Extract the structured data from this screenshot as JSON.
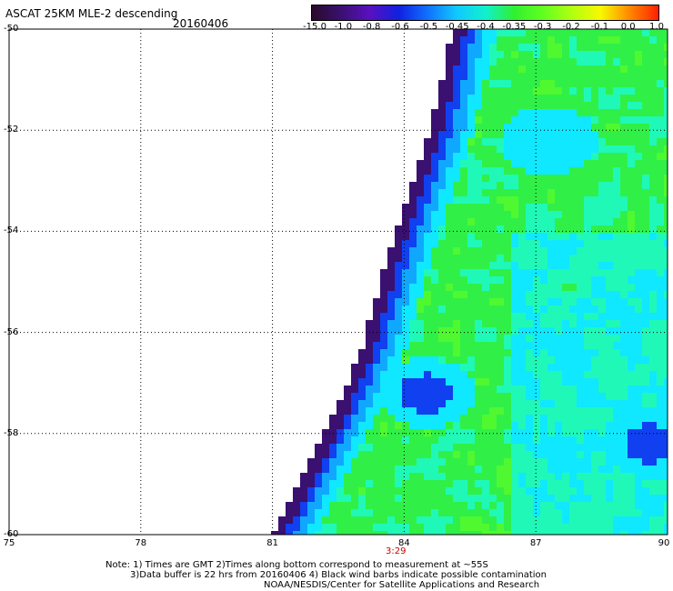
{
  "header": {
    "title": "ASCAT 25KM MLE-2 descending",
    "date": "20160406"
  },
  "colorbar": {
    "labels": [
      "-15.0",
      "-1.0",
      "-0.8",
      "-0.6",
      "-0.5",
      "-0.45",
      "-0.4",
      "-0.35",
      "-0.3",
      "-0.2",
      "-0.1",
      "0.0",
      "1.0"
    ],
    "colors": [
      "#2a0a2a",
      "#3a1070",
      "#5a10c0",
      "#1020e0",
      "#1070ff",
      "#10c8ff",
      "#10f0d0",
      "#30f030",
      "#60ff20",
      "#b0ff10",
      "#f8f800",
      "#ff8800",
      "#ff2000"
    ]
  },
  "map": {
    "lon_ticks": [
      "75",
      "78",
      "81",
      "84",
      "87",
      "90"
    ],
    "lat_ticks": [
      "-50",
      "-52",
      "-54",
      "-56",
      "-58",
      "-60"
    ],
    "lon_range": [
      75,
      90
    ],
    "lat_range": [
      -60,
      -50
    ],
    "swath_edge": [
      [
        81.0,
        -60
      ],
      [
        82.2,
        -58
      ],
      [
        83.0,
        -56.4
      ],
      [
        83.8,
        -54
      ],
      [
        84.6,
        -52
      ],
      [
        85.1,
        -50
      ]
    ],
    "low_spots": [
      {
        "lon": 84.5,
        "lat": -57.2,
        "value": "-0.6"
      },
      {
        "lon": 89.6,
        "lat": -58.2,
        "value": "-0.6"
      },
      {
        "lon": 87.3,
        "lat": -52.2,
        "value": "-0.45"
      }
    ],
    "pass_time": "3:29"
  },
  "notes": {
    "line1": "Note: 1) Times are GMT 2)Times along bottom correspond to measurement at ~55S",
    "line2": "3)Data buffer is 22 hrs from 20160406 4) Black wind barbs indicate possible contamination",
    "line3": "NOAA/NESDIS/Center for Satellite Applications and Research"
  }
}
